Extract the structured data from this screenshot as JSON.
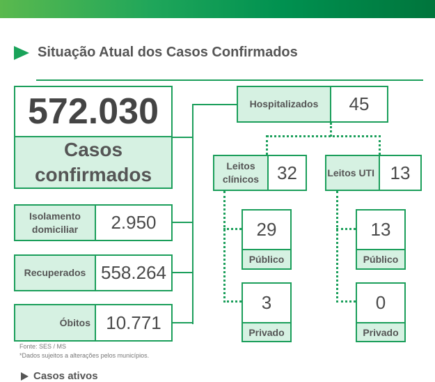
{
  "header": {
    "title": "Situação Atual dos Casos Confirmados",
    "accent": "#1a9e5a",
    "light": "#d6f1e2"
  },
  "confirmed": {
    "value": "572.030",
    "label": "Casos confirmados"
  },
  "isolamento": {
    "label": "Isolamento domiciliar",
    "value": "2.950"
  },
  "recuperados": {
    "label": "Recuperados",
    "value": "558.264"
  },
  "obitos": {
    "label": "Óbitos",
    "value": "10.771"
  },
  "hospitalizados": {
    "label": "Hospitalizados",
    "value": "45"
  },
  "clinicos": {
    "label": "Leitos clínicos",
    "value": "32",
    "publico": {
      "value": "29",
      "label": "Público"
    },
    "privado": {
      "value": "3",
      "label": "Privado"
    }
  },
  "uti": {
    "label": "Leitos UTI",
    "value": "13",
    "publico": {
      "value": "13",
      "label": "Público"
    },
    "privado": {
      "value": "0",
      "label": "Privado"
    }
  },
  "footer": {
    "source": "Fonte: SES / MS",
    "note": "*Dados sujeitos a alterações pelos municípios."
  },
  "next_section": {
    "title": "Casos ativos"
  }
}
